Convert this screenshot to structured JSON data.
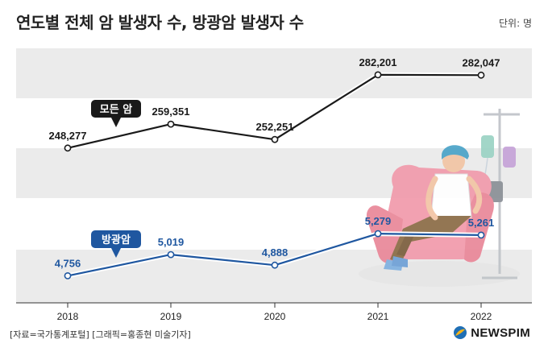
{
  "title": "연도별 전체 암 발생자 수, 방광암 발생자 수",
  "unit": "단위: 명",
  "source": "[자료=국가통계포털] [그래픽=홍종현 미술기자]",
  "logo": {
    "text": "NEWSPIM",
    "icon": "newspim-logo-icon"
  },
  "colors": {
    "all_cancer": "#1a1a1a",
    "bladder": "#1f57a0",
    "band": "#ebebeb"
  },
  "chart_data": {
    "type": "line",
    "x": [
      "2018",
      "2019",
      "2020",
      "2021",
      "2022"
    ],
    "series": [
      {
        "name": "모든 암",
        "values": [
          248277,
          259351,
          252251,
          282201,
          282047
        ],
        "labels": [
          "248,277",
          "259,351",
          "252,251",
          "282,201",
          "282,047"
        ]
      },
      {
        "name": "방광암",
        "values": [
          4756,
          5019,
          4888,
          5279,
          5261
        ],
        "labels": [
          "4,756",
          "5,019",
          "4,888",
          "5,279",
          "5,261"
        ]
      }
    ],
    "title": "연도별 전체 암 발생자 수, 방광암 발생자 수",
    "ylabel": "단위: 명",
    "grid": true
  }
}
